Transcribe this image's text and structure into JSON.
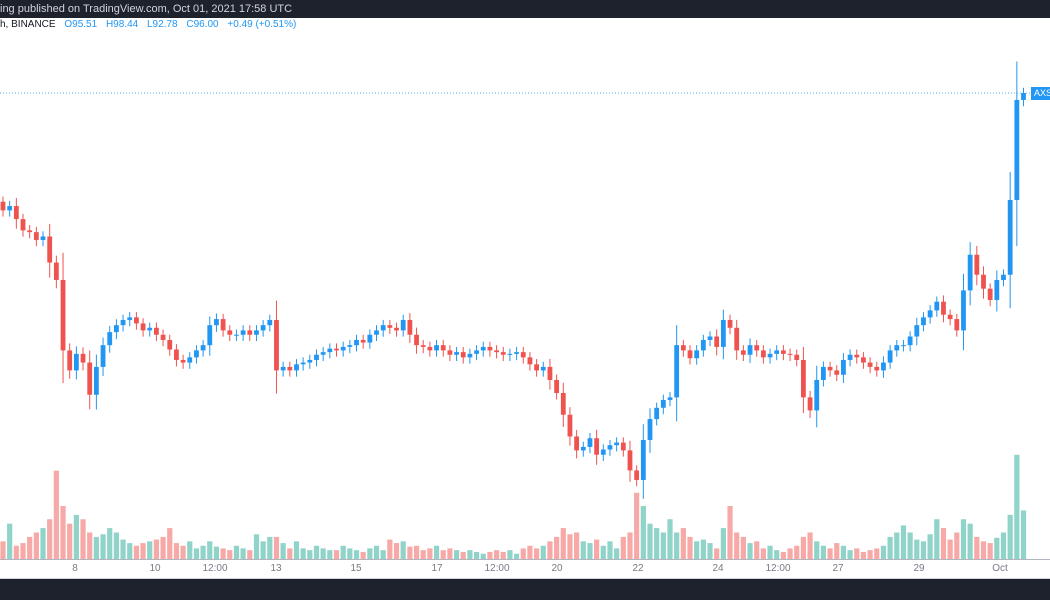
{
  "header": {
    "publish_text": "ing published on TradingView.com, Oct 01, 2021 17:58 UTC"
  },
  "legend": {
    "symbol_text": "h, BINANCE",
    "open": "O95.51",
    "high": "H98.44",
    "low": "L92.78",
    "close": "C96.00",
    "change": "+0.49 (+0.51%)"
  },
  "price_label": "AXS",
  "colors": {
    "up": "#2196f3",
    "down": "#ef5350",
    "vol_up": "#8fd3c9",
    "vol_down": "#f7a9a7",
    "price_line": "#2196f3"
  },
  "chart_data": {
    "type": "candlestick",
    "interval": "4h",
    "x_tick_labels": [
      "8",
      "10",
      "12:00",
      "13",
      "15",
      "17",
      "12:00",
      "20",
      "22",
      "24",
      "12:00",
      "27",
      "29",
      "Oct"
    ],
    "first_open": 83.5,
    "closes": [
      82.5,
      83.0,
      81.5,
      80.2,
      80.0,
      79.1,
      79.5,
      76.5,
      74.5,
      66.4,
      64.1,
      66.0,
      65.0,
      61.3,
      64.5,
      67.0,
      68.5,
      69.3,
      69.9,
      70.2,
      69.5,
      68.7,
      69.0,
      68.2,
      67.6,
      66.5,
      65.3,
      65.0,
      65.6,
      66.4,
      67.0,
      69.3,
      70.0,
      68.7,
      68.2,
      68.2,
      68.7,
      68.2,
      68.7,
      69.3,
      69.9,
      64.1,
      64.5,
      64.1,
      64.8,
      65.0,
      65.3,
      65.9,
      66.2,
      66.6,
      66.4,
      66.8,
      67.0,
      67.6,
      67.3,
      68.2,
      68.7,
      69.3,
      69.0,
      68.7,
      69.9,
      68.2,
      67.0,
      66.8,
      66.4,
      67.0,
      66.4,
      65.9,
      66.2,
      65.6,
      66.0,
      66.4,
      66.8,
      66.4,
      66.2,
      65.9,
      66.0,
      66.2,
      65.6,
      64.8,
      64.1,
      64.5,
      63.0,
      61.5,
      59.0,
      56.5,
      54.9,
      55.3,
      56.3,
      54.4,
      55.0,
      55.5,
      55.8,
      54.9,
      52.6,
      51.5,
      56.1,
      58.5,
      59.8,
      60.7,
      61.0,
      67.0,
      66.4,
      65.5,
      66.4,
      67.6,
      68.0,
      66.8,
      69.9,
      69.0,
      66.4,
      65.9,
      67.0,
      66.4,
      65.6,
      66.0,
      66.4,
      66.0,
      65.9,
      65.3,
      61.0,
      59.5,
      63.0,
      64.5,
      64.1,
      63.6,
      65.3,
      65.9,
      65.6,
      65.0,
      64.5,
      64.1,
      65.0,
      66.4,
      67.0,
      67.0,
      68.0,
      69.3,
      70.2,
      71.0,
      72.0,
      70.5,
      70.0,
      68.7,
      73.3,
      77.4,
      75.1,
      73.5,
      72.2,
      74.5,
      75.1,
      83.7,
      95.2,
      96.0
    ],
    "volumes": [
      20,
      40,
      15,
      18,
      25,
      30,
      35,
      45,
      100,
      60,
      40,
      50,
      45,
      30,
      25,
      28,
      35,
      30,
      22,
      18,
      15,
      18,
      20,
      22,
      25,
      35,
      18,
      15,
      20,
      12,
      15,
      20,
      14,
      12,
      10,
      15,
      12,
      10,
      28,
      20,
      25,
      25,
      18,
      12,
      20,
      12,
      10,
      15,
      12,
      10,
      10,
      15,
      12,
      10,
      8,
      12,
      15,
      10,
      22,
      18,
      20,
      14,
      15,
      10,
      12,
      15,
      10,
      12,
      10,
      8,
      10,
      8,
      6,
      8,
      10,
      8,
      10,
      6,
      12,
      15,
      12,
      15,
      20,
      25,
      35,
      28,
      30,
      20,
      18,
      22,
      15,
      20,
      12,
      25,
      30,
      75,
      60,
      40,
      35,
      30,
      45,
      30,
      35,
      25,
      20,
      22,
      18,
      12,
      35,
      60,
      30,
      25,
      18,
      20,
      12,
      15,
      10,
      8,
      12,
      15,
      25,
      30,
      20,
      15,
      12,
      18,
      15,
      10,
      12,
      8,
      10,
      12,
      15,
      25,
      30,
      38,
      30,
      22,
      20,
      28,
      45,
      35,
      22,
      30,
      45,
      40,
      25,
      20,
      18,
      24,
      30,
      50,
      118,
      55
    ],
    "last_price": 96.0
  }
}
